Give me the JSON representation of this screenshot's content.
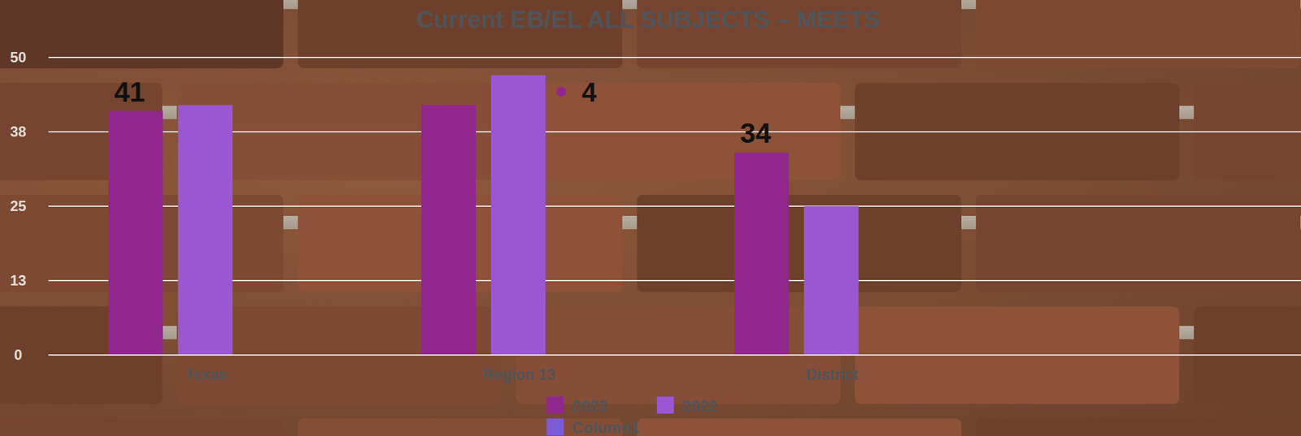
{
  "chart_data": {
    "type": "bar",
    "title": "Current EB/EL ALL SUBJECTS – MEETS",
    "categories": [
      "Texas",
      "Region 13",
      "District"
    ],
    "series": [
      {
        "name": "2023",
        "color": "#92268f",
        "values": [
          41,
          42,
          34
        ],
        "value_labels": [
          "41",
          null,
          "34"
        ]
      },
      {
        "name": "2022",
        "color": "#9b57d3",
        "values": [
          42,
          47,
          25
        ]
      },
      {
        "name": "Column1",
        "color": "#7b5cd6",
        "values": [
          null,
          null,
          null
        ]
      }
    ],
    "annotations": [
      {
        "text": "4"
      }
    ],
    "ylim": [
      0,
      50
    ],
    "yticks": [
      0,
      {
        "value": 12.5,
        "label": "13"
      },
      25,
      {
        "value": 37.5,
        "label": "38"
      },
      50
    ],
    "grid": true,
    "legend": "bottom",
    "data_labels": true
  }
}
